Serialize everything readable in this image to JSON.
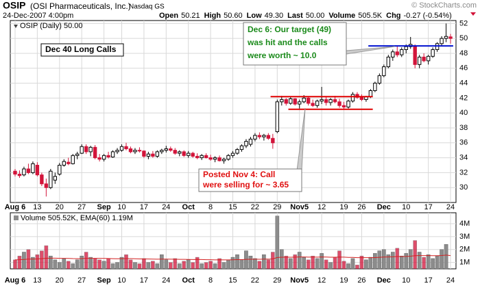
{
  "chart_data": {
    "type": "candlestick",
    "symbol": "OSIP",
    "company": "(OSI Pharmaceuticals, Inc.)",
    "exchange": "Nasdaq GS",
    "datetime": "24-Dec-2007 4:00pm",
    "quote": [
      {
        "label": "Open",
        "value": "50.21"
      },
      {
        "label": "High",
        "value": "50.60"
      },
      {
        "label": "Low",
        "value": "49.30"
      },
      {
        "label": "Last",
        "value": "50.00"
      },
      {
        "label": "Volume",
        "value": "505.5K"
      },
      {
        "label": "Chg",
        "value": "-0.27 (-0.54%)"
      }
    ],
    "watermark": "© StockCharts.com",
    "price_legend": "OSIP (Daily) 50.00",
    "volume_legend": "Volume 505.52K, EMA(60) 1.19M",
    "up_color": "#000000",
    "down_color": "#d2143a",
    "volume_up_color": "#8c8c8c",
    "ema_color": "#d22020",
    "grid": true,
    "categories": [
      "Aug 6",
      null,
      null,
      null,
      null,
      "13",
      null,
      null,
      null,
      null,
      "20",
      null,
      null,
      null,
      null,
      "27",
      null,
      null,
      null,
      null,
      "Sep",
      null,
      null,
      null,
      "10",
      null,
      null,
      null,
      null,
      "17",
      null,
      null,
      null,
      null,
      "24",
      null,
      null,
      null,
      null,
      "Oct",
      null,
      null,
      null,
      null,
      "8",
      null,
      null,
      null,
      null,
      "15",
      null,
      null,
      null,
      null,
      "22",
      null,
      null,
      null,
      null,
      "29",
      null,
      null,
      null,
      null,
      "Nov5",
      null,
      null,
      null,
      null,
      "12",
      null,
      null,
      null,
      null,
      "19",
      null,
      null,
      null,
      "26",
      null,
      null,
      null,
      null,
      "Dec",
      null,
      null,
      null,
      null,
      "10",
      null,
      null,
      null,
      null,
      "17",
      null,
      null,
      null,
      null,
      "24"
    ],
    "candles": [
      [
        32.2,
        32.5,
        31.5,
        31.8
      ],
      [
        31.8,
        32.3,
        31.3,
        31.6
      ],
      [
        31.7,
        32.8,
        31.5,
        32.5
      ],
      [
        32.5,
        33.2,
        31.8,
        32.0
      ],
      [
        32.0,
        33.5,
        31.8,
        33.2
      ],
      [
        33.0,
        33.4,
        31.5,
        31.7
      ],
      [
        31.7,
        32.0,
        30.2,
        30.5
      ],
      [
        30.5,
        31.2,
        28.8,
        30.0
      ],
      [
        30.0,
        32.5,
        29.8,
        32.2
      ],
      [
        31.0,
        32.0,
        30.5,
        31.5
      ],
      [
        31.8,
        33.3,
        31.6,
        33.0
      ],
      [
        33.0,
        33.8,
        32.8,
        33.5
      ],
      [
        33.4,
        34.0,
        33.0,
        33.2
      ],
      [
        33.2,
        34.5,
        33.1,
        34.3
      ],
      [
        34.3,
        34.8,
        33.8,
        34.5
      ],
      [
        34.6,
        35.8,
        34.5,
        35.5
      ],
      [
        35.5,
        35.8,
        34.5,
        34.8
      ],
      [
        34.8,
        35.6,
        34.2,
        35.4
      ],
      [
        35.4,
        35.7,
        33.8,
        34.0
      ],
      [
        34.0,
        34.5,
        33.5,
        33.8
      ],
      [
        33.8,
        34.5,
        33.5,
        34.3
      ],
      [
        34.3,
        34.8,
        33.9,
        34.1
      ],
      [
        34.1,
        35.0,
        34.0,
        34.8
      ],
      [
        34.8,
        35.3,
        34.5,
        35.0
      ],
      [
        35.0,
        35.8,
        34.8,
        35.5
      ],
      [
        35.5,
        36.0,
        35.0,
        35.2
      ],
      [
        35.2,
        35.5,
        34.6,
        34.8
      ],
      [
        34.8,
        35.3,
        34.5,
        35.0
      ],
      [
        35.0,
        35.4,
        34.7,
        34.9
      ],
      [
        34.9,
        35.0,
        34.0,
        34.2
      ],
      [
        34.2,
        34.8,
        33.8,
        34.5
      ],
      [
        34.5,
        34.9,
        34.0,
        34.2
      ],
      [
        34.2,
        35.0,
        34.0,
        34.8
      ],
      [
        34.8,
        35.2,
        34.5,
        35.0
      ],
      [
        35.0,
        35.6,
        34.7,
        35.2
      ],
      [
        35.2,
        35.5,
        34.8,
        35.0
      ],
      [
        35.0,
        35.3,
        34.4,
        34.6
      ],
      [
        34.6,
        35.0,
        34.2,
        34.8
      ],
      [
        34.8,
        35.0,
        34.1,
        34.3
      ],
      [
        34.3,
        34.9,
        34.0,
        34.6
      ],
      [
        34.6,
        34.8,
        34.0,
        34.2
      ],
      [
        34.2,
        34.6,
        33.8,
        34.0
      ],
      [
        34.0,
        34.5,
        33.7,
        34.3
      ],
      [
        34.3,
        34.6,
        33.9,
        34.0
      ],
      [
        34.0,
        34.4,
        33.6,
        33.8
      ],
      [
        33.8,
        34.2,
        33.4,
        34.0
      ],
      [
        34.0,
        34.3,
        33.5,
        33.6
      ],
      [
        33.6,
        34.0,
        33.2,
        33.8
      ],
      [
        33.8,
        34.5,
        33.6,
        34.3
      ],
      [
        34.3,
        34.9,
        34.0,
        34.6
      ],
      [
        34.6,
        35.3,
        34.4,
        35.1
      ],
      [
        35.1,
        35.8,
        34.8,
        35.6
      ],
      [
        35.6,
        36.5,
        35.3,
        36.2
      ],
      [
        35.8,
        36.8,
        35.5,
        36.5
      ],
      [
        36.5,
        37.3,
        36.2,
        37.0
      ],
      [
        37.0,
        37.4,
        36.5,
        36.8
      ],
      [
        36.8,
        37.2,
        36.3,
        37.0
      ],
      [
        37.0,
        37.3,
        36.4,
        36.6
      ],
      [
        36.6,
        37.2,
        35.2,
        36.0
      ],
      [
        37.5,
        41.8,
        37.3,
        41.5
      ],
      [
        41.5,
        42.3,
        41.0,
        41.8
      ],
      [
        41.8,
        42.0,
        41.0,
        41.3
      ],
      [
        41.3,
        42.2,
        41.1,
        41.9
      ],
      [
        41.9,
        42.0,
        41.0,
        41.2
      ],
      [
        41.2,
        41.8,
        40.6,
        41.5
      ],
      [
        41.5,
        42.4,
        41.3,
        42.0
      ],
      [
        42.0,
        42.2,
        41.0,
        41.3
      ],
      [
        41.3,
        41.8,
        40.8,
        41.0
      ],
      [
        41.0,
        41.8,
        40.7,
        41.6
      ],
      [
        41.6,
        43.5,
        41.2,
        41.8
      ],
      [
        41.8,
        42.2,
        41.0,
        41.4
      ],
      [
        41.4,
        42.0,
        41.0,
        41.8
      ],
      [
        41.8,
        42.3,
        41.3,
        41.5
      ],
      [
        41.5,
        41.9,
        40.7,
        41.0
      ],
      [
        41.0,
        41.5,
        40.5,
        40.8
      ],
      [
        40.8,
        41.8,
        40.6,
        41.6
      ],
      [
        41.6,
        42.8,
        41.4,
        42.5
      ],
      [
        42.5,
        42.8,
        41.9,
        42.1
      ],
      [
        42.1,
        42.5,
        41.6,
        41.8
      ],
      [
        41.8,
        42.3,
        41.5,
        42.2
      ],
      [
        42.2,
        43.2,
        42.0,
        43.0
      ],
      [
        43.0,
        44.2,
        42.8,
        44.0
      ],
      [
        44.0,
        45.3,
        43.8,
        45.0
      ],
      [
        45.0,
        46.5,
        44.8,
        46.2
      ],
      [
        46.2,
        47.8,
        46.0,
        47.5
      ],
      [
        47.5,
        48.5,
        47.0,
        48.2
      ],
      [
        48.2,
        49.0,
        47.5,
        47.8
      ],
      [
        47.8,
        48.8,
        47.5,
        48.5
      ],
      [
        48.5,
        49.2,
        48.0,
        48.9
      ],
      [
        48.9,
        50.2,
        48.6,
        49.2
      ],
      [
        49.0,
        49.2,
        46.0,
        46.5
      ],
      [
        46.5,
        47.8,
        46.0,
        47.5
      ],
      [
        47.5,
        48.0,
        46.8,
        47.0
      ],
      [
        47.0,
        47.8,
        46.5,
        47.6
      ],
      [
        47.6,
        48.8,
        47.4,
        48.5
      ],
      [
        48.5,
        49.5,
        48.2,
        49.3
      ],
      [
        49.3,
        50.3,
        49.0,
        50.0
      ],
      [
        50.0,
        52.0,
        49.5,
        50.27
      ],
      [
        50.21,
        50.6,
        49.3,
        50.0
      ]
    ],
    "volume": [
      1.2,
      1.5,
      1.8,
      2.0,
      1.4,
      1.6,
      1.9,
      2.3,
      1.5,
      1.2,
      1.0,
      1.3,
      1.1,
      0.9,
      1.2,
      1.5,
      1.8,
      1.4,
      1.3,
      1.2,
      1.1,
      1.3,
      0.9,
      1.0,
      1.4,
      1.6,
      1.2,
      1.0,
      0.9,
      1.3,
      1.0,
      1.1,
      0.9,
      1.6,
      1.2,
      1.0,
      1.3,
      0.9,
      1.1,
      1.2,
      1.0,
      1.4,
      0.9,
      1.0,
      1.1,
      0.9,
      1.3,
      1.0,
      1.2,
      1.4,
      1.6,
      1.2,
      1.9,
      1.5,
      1.3,
      1.1,
      1.6,
      1.2,
      1.8,
      4.6,
      2.0,
      1.5,
      1.3,
      1.6,
      1.8,
      1.4,
      1.2,
      1.5,
      1.3,
      1.7,
      1.2,
      1.0,
      1.4,
      1.9,
      1.1,
      0.9,
      1.3,
      0.8,
      1.5,
      1.2,
      1.4,
      1.7,
      1.9,
      2.0,
      1.6,
      1.8,
      2.1,
      1.5,
      1.7,
      2.0,
      2.7,
      1.8,
      1.4,
      1.6,
      1.3,
      1.5,
      2.0,
      2.4,
      0.5
    ],
    "ylim": [
      28,
      52.4
    ],
    "yticks": [
      30,
      32,
      34,
      36,
      38,
      40,
      42,
      44,
      46,
      48,
      50,
      52
    ],
    "vol_ylim": [
      0.5,
      4.85
    ],
    "vol_yticks": [
      {
        "value": 1,
        "label": "1M"
      },
      {
        "value": 2,
        "label": "2M"
      },
      {
        "value": 3,
        "label": "3M"
      },
      {
        "value": 4,
        "label": "4M"
      }
    ],
    "hlines": [
      {
        "value": 42.2,
        "from": 57.5,
        "to": 80.5,
        "color": "#e00000"
      },
      {
        "value": 40.5,
        "from": 61.5,
        "to": 80.5,
        "color": "#e00000"
      },
      {
        "value": 49,
        "from": 79.5,
        "to": 98.6,
        "color": "#0010d0"
      }
    ],
    "annotations": [
      {
        "lines": [
          "Dec 40 Long Calls"
        ]
      },
      {
        "lines": [
          "Dec 6: Our target (49)",
          "was hit and the calls",
          "were worth ~ 10.0"
        ]
      },
      {
        "lines": [
          "Posted Nov 4: Call",
          "were selling for ~ 3.65"
        ]
      }
    ]
  }
}
